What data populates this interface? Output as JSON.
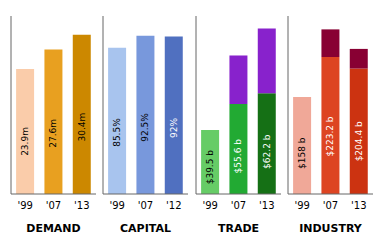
{
  "chart_data": [
    {
      "type": "bar",
      "xlabel": "DEMAND",
      "categories": [
        "'99",
        "'07",
        "'13"
      ],
      "stacked": true,
      "tick_labels": false,
      "ylim": [
        0,
        34
      ],
      "series": [
        {
          "values": [
            23.9,
            27.6,
            30.4
          ],
          "colors": [
            "#FACCAA",
            "#E8A020",
            "#CC8800"
          ],
          "data_labels": true,
          "value_labels": [
            "23.9m",
            "27.6m",
            "30.4m"
          ]
        }
      ]
    },
    {
      "type": "bar",
      "xlabel": "CAPITAL",
      "categories": [
        "'99",
        "'07",
        "'12"
      ],
      "stacked": true,
      "tick_labels": false,
      "ylim": [
        0,
        104
      ],
      "series": [
        {
          "values": [
            85.5,
            92.5,
            92
          ],
          "colors": [
            "#A8C4EE",
            "#7898DC",
            "#5070C0"
          ],
          "data_labels": true,
          "value_labels": [
            "85.5%",
            "92.5%",
            "92%"
          ]
        }
      ]
    },
    {
      "type": "bar",
      "xlabel": "TRADE",
      "categories": [
        "'99",
        "'07",
        "'13"
      ],
      "stacked": true,
      "tick_labels": false,
      "ylim": [
        0,
        110
      ],
      "series": [
        {
          "values": [
            39.5,
            55.6,
            62.2
          ],
          "colors": [
            "#66CC66",
            "#22AA33",
            "#157015"
          ],
          "data_labels": true,
          "value_labels": [
            "$39.5 b",
            "$55.6 b",
            "$62.2 b"
          ]
        },
        {
          "values": [
            0,
            30,
            40
          ],
          "color": "#8822CC"
        }
      ]
    },
    {
      "type": "bar",
      "xlabel": "INDUSTRY",
      "categories": [
        "'99",
        "'07",
        "'13"
      ],
      "stacked": true,
      "tick_labels": false,
      "ylim": [
        0,
        290
      ],
      "series": [
        {
          "values": [
            158,
            223.2,
            204.4
          ],
          "colors": [
            "#F0A898",
            "#DD4422",
            "#CC3311"
          ],
          "data_labels": true,
          "value_labels": [
            "$158 b",
            "$223.2 b",
            "$204.4 b"
          ]
        },
        {
          "values": [
            0,
            45,
            32
          ],
          "color": "#880033"
        }
      ]
    }
  ]
}
